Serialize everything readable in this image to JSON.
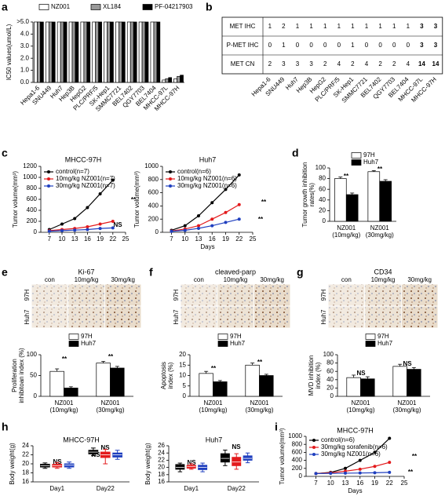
{
  "chart_data": [
    {
      "panel": "a",
      "type": "bar",
      "ylabel": "IC50 values(umol/L)",
      "categories": [
        "Hepa1-6",
        "SNU449",
        "Huh7",
        "Hep3B",
        "HepG2",
        "PLC/PRF/5",
        "SK-Hep1",
        "SMMC7721",
        "BEL7402",
        "QGY7703",
        "BEL7404",
        "MHCC-97L",
        "MHCC-97H"
      ],
      "series": [
        {
          "name": "NZ001",
          "color": "#ffffff",
          "values": [
            5,
            5,
            5,
            5,
            5,
            5,
            5,
            5,
            5,
            5,
            5,
            0.2,
            0.3
          ]
        },
        {
          "name": "XL184",
          "color": "#999999",
          "values": [
            5,
            5,
            5,
            5,
            5,
            5,
            5,
            5,
            5,
            5,
            5,
            0.3,
            0.5
          ]
        },
        {
          "name": "PF-04217903",
          "color": "#000000",
          "values": [
            5,
            5,
            5,
            5,
            5,
            5,
            5,
            5,
            5,
            5,
            5,
            0.4,
            0.6
          ]
        }
      ],
      "ylim": [
        0,
        5
      ],
      "yticks": [
        {
          "value": 0,
          "label": "0.0"
        },
        {
          "value": 1,
          "label": "1.0"
        },
        {
          "value": 2,
          "label": "2.0"
        },
        {
          "value": 3,
          "label": "3.0"
        },
        {
          "value": 4,
          "label": "4.0"
        },
        {
          "value": 5,
          "label": ">5.0"
        }
      ]
    },
    {
      "panel": "b",
      "type": "table",
      "columns": [
        "Hepa1-6",
        "SNU449",
        "Huh7",
        "Hep3B",
        "HepG2",
        "PLC/PRF/5",
        "SK-Hep1",
        "SMMC7721",
        "BEL7402",
        "QGY7703",
        "BEL7404",
        "MHCC-97L",
        "MHCC-97H"
      ],
      "rows": [
        {
          "label": "MET IHC",
          "values": [
            1,
            2,
            1,
            1,
            1,
            1,
            1,
            1,
            1,
            1,
            1,
            3,
            3
          ]
        },
        {
          "label": "P-MET IHC",
          "values": [
            0,
            1,
            0,
            0,
            0,
            0,
            1,
            0,
            0,
            0,
            0,
            3,
            3
          ]
        },
        {
          "label": "MET CN",
          "values": [
            2,
            3,
            3,
            3,
            2,
            4,
            2,
            4,
            2,
            2,
            4,
            14,
            14
          ]
        }
      ]
    },
    {
      "panel": "c",
      "type": "line",
      "title": "MHCC-97H",
      "ylabel": "Tumor volume(mm³)",
      "x": [
        7,
        10,
        13,
        16,
        19,
        22
      ],
      "xlim": [
        5,
        25
      ],
      "xticks": [
        7,
        10,
        13,
        16,
        19,
        22,
        25
      ],
      "ylim": [
        0,
        1200
      ],
      "yticks": [
        0,
        200,
        400,
        600,
        800,
        1000,
        1200
      ],
      "series": [
        {
          "name": "control(n=7)",
          "color": "#000000",
          "values": [
            50,
            150,
            250,
            450,
            700,
            950
          ]
        },
        {
          "name": "10mg/kg NZ001(n=7)",
          "color": "#e31a1c",
          "values": [
            30,
            50,
            70,
            100,
            150,
            200
          ]
        },
        {
          "name": "30mg/kg NZ001(n=7)",
          "color": "#1f3fbf",
          "values": [
            20,
            30,
            40,
            50,
            70,
            80
          ]
        }
      ],
      "annotations": [
        "**",
        "NS"
      ]
    },
    {
      "type": "line",
      "title": "Huh7",
      "ylabel": "Tumor volume(mm³)",
      "xlabel": "Days",
      "x": [
        7,
        10,
        13,
        16,
        19,
        22
      ],
      "xlim": [
        5,
        25
      ],
      "xticks": [
        7,
        10,
        13,
        16,
        19,
        22,
        25
      ],
      "ylim": [
        0,
        1000
      ],
      "yticks": [
        0,
        200,
        400,
        600,
        800,
        1000
      ],
      "series": [
        {
          "name": "control(n=6)",
          "color": "#000000",
          "values": [
            30,
            100,
            250,
            450,
            650,
            870
          ]
        },
        {
          "name": "10mg/kg NZ001(n=6)",
          "color": "#e31a1c",
          "values": [
            20,
            50,
            100,
            200,
            300,
            420
          ]
        },
        {
          "name": "30mg/kg NZ001(n=6)",
          "color": "#1f3fbf",
          "values": [
            15,
            30,
            60,
            100,
            150,
            200
          ]
        }
      ],
      "annotations": [
        "**",
        "**"
      ]
    },
    {
      "panel": "d",
      "type": "bar",
      "ylabel": [
        "Tumor growth inhibition",
        "rates(%)"
      ],
      "categories": [
        [
          "NZ001",
          "(10mg/kg)"
        ],
        [
          "NZ001",
          "(30mg/kg)"
        ]
      ],
      "series": [
        {
          "name": "97H",
          "color": "#ffffff",
          "values": [
            80,
            93
          ],
          "errors": [
            3,
            2
          ]
        },
        {
          "name": "Huh7",
          "color": "#000000",
          "values": [
            50,
            75
          ],
          "errors": [
            3,
            3
          ]
        }
      ],
      "ylim": [
        0,
        100
      ],
      "yticks": [
        0,
        20,
        40,
        60,
        80,
        100
      ],
      "annotations": [
        "**",
        "**"
      ]
    },
    {
      "panel": "e",
      "type": "bar",
      "title": "Ki-67",
      "image_columns": [
        "con",
        "10mg/kg",
        "30mg/kg"
      ],
      "image_rows": [
        "97H",
        "Huh7"
      ],
      "ylabel": [
        "Proliferation",
        "inhibitoan index (%)"
      ],
      "categories": [
        [
          "NZ001",
          "(10mg/kg)"
        ],
        [
          "NZ001",
          "(30mg/kg)"
        ]
      ],
      "series": [
        {
          "name": "97H",
          "color": "#ffffff",
          "values": [
            60,
            80
          ],
          "errors": [
            6,
            4
          ]
        },
        {
          "name": "Huh7",
          "color": "#000000",
          "values": [
            20,
            68
          ],
          "errors": [
            3,
            4
          ]
        }
      ],
      "ylim": [
        0,
        100
      ],
      "yticks": [
        0,
        50,
        100
      ],
      "annotations": [
        "**",
        "**"
      ]
    },
    {
      "panel": "f",
      "type": "bar",
      "title": "cleaved-parp",
      "image_columns": [
        "con",
        "10mg/kg",
        "30mg/kg"
      ],
      "image_rows": [
        "97H",
        "Huh7"
      ],
      "ylabel": [
        "Apoptosis",
        "index (%)"
      ],
      "categories": [
        [
          "NZ001",
          "(10mg/kg)"
        ],
        [
          "NZ001",
          "(30mg/kg)"
        ]
      ],
      "series": [
        {
          "name": "97H",
          "color": "#ffffff",
          "values": [
            11,
            15
          ],
          "errors": [
            1,
            1
          ]
        },
        {
          "name": "Huh7",
          "color": "#000000",
          "values": [
            7,
            10
          ],
          "errors": [
            0.6,
            0.6
          ]
        }
      ],
      "ylim": [
        0,
        20
      ],
      "yticks": [
        0,
        5,
        10,
        15,
        20
      ],
      "annotations": [
        "**",
        "**"
      ]
    },
    {
      "panel": "g",
      "type": "bar",
      "title": "CD34",
      "image_columns": [
        "con",
        "10mg/kg",
        "30mg/kg"
      ],
      "image_rows": [
        "97H",
        "Huh7"
      ],
      "ylabel": [
        "MVD inhibition",
        "index (%)"
      ],
      "categories": [
        [
          "NZ001",
          "(10mg/kg)"
        ],
        [
          "NZ001",
          "(30mg/kg)"
        ]
      ],
      "series": [
        {
          "name": "97H",
          "color": "#ffffff",
          "values": [
            45,
            72
          ],
          "errors": [
            6,
            5
          ]
        },
        {
          "name": "Huh7",
          "color": "#000000",
          "values": [
            42,
            65
          ],
          "errors": [
            5,
            4
          ]
        }
      ],
      "ylim": [
        0,
        100
      ],
      "yticks": [
        0,
        20,
        40,
        60,
        80,
        100
      ],
      "annotations": [
        "NS",
        "NS"
      ]
    },
    {
      "panel": "h",
      "type": "box",
      "title": "MHCC-97H",
      "ylabel": "Body weight(g)",
      "groups": [
        "Day1",
        "Day22"
      ],
      "ylim": [
        16,
        24
      ],
      "yticks": [
        16,
        18,
        20,
        22,
        24
      ],
      "series": [
        {
          "color": "#000000",
          "boxes": [
            {
              "min": 19,
              "q1": 19.3,
              "median": 19.6,
              "q3": 19.9,
              "max": 20.2
            },
            {
              "min": 21.8,
              "q1": 22.2,
              "median": 22.6,
              "q3": 23,
              "max": 23.5
            }
          ]
        },
        {
          "color": "#e31a1c",
          "boxes": [
            {
              "min": 19,
              "q1": 19.3,
              "median": 19.6,
              "q3": 19.9,
              "max": 20.3
            },
            {
              "min": 20,
              "q1": 21.4,
              "median": 22,
              "q3": 22.6,
              "max": 23.2
            }
          ]
        },
        {
          "color": "#1f3fbf",
          "boxes": [
            {
              "min": 19,
              "q1": 19.3,
              "median": 19.7,
              "q3": 20,
              "max": 20.4
            },
            {
              "min": 21,
              "q1": 21.5,
              "median": 22,
              "q3": 22.4,
              "max": 23
            }
          ]
        }
      ],
      "annotations": [
        "NS",
        "NS",
        "NS"
      ]
    },
    {
      "type": "box",
      "title": "Huh7",
      "ylabel": "Body weight(g)",
      "groups": [
        "Day1",
        "Day22"
      ],
      "ylim": [
        16,
        26
      ],
      "yticks": [
        16,
        18,
        20,
        22,
        24,
        26
      ],
      "series": [
        {
          "color": "#000000",
          "boxes": [
            {
              "min": 18.8,
              "q1": 19.5,
              "median": 20,
              "q3": 20.8,
              "max": 21.2
            },
            {
              "min": 20.5,
              "q1": 21.5,
              "median": 22.5,
              "q3": 23.8,
              "max": 24.8
            }
          ]
        },
        {
          "color": "#e31a1c",
          "boxes": [
            {
              "min": 19.5,
              "q1": 19.8,
              "median": 20.2,
              "q3": 20.6,
              "max": 21
            },
            {
              "min": 19.5,
              "q1": 20.5,
              "median": 21.5,
              "q3": 22.8,
              "max": 23.8
            }
          ]
        },
        {
          "color": "#1f3fbf",
          "boxes": [
            {
              "min": 18.8,
              "q1": 19.4,
              "median": 20,
              "q3": 20.6,
              "max": 21.2
            },
            {
              "min": 21.3,
              "q1": 22,
              "median": 22.5,
              "q3": 23.2,
              "max": 24
            }
          ]
        }
      ],
      "annotations": [
        "NS",
        "NS"
      ]
    },
    {
      "panel": "i",
      "type": "line",
      "title": "MHCC-97H",
      "ylabel": "Tumor volume(mm³)",
      "xlabel": "Days",
      "x": [
        7,
        10,
        13,
        16,
        19,
        22
      ],
      "xlim": [
        5,
        25
      ],
      "xticks": [
        7,
        10,
        13,
        16,
        19,
        22,
        25
      ],
      "ylim": [
        0,
        1000
      ],
      "yticks": [
        0,
        200,
        400,
        600,
        800,
        1000
      ],
      "series": [
        {
          "name": "control(n=6)",
          "color": "#000000",
          "values": [
            70,
            100,
            200,
            400,
            600,
            950
          ]
        },
        {
          "name": "30mg/kg sorafenib(n=6)",
          "color": "#e31a1c",
          "values": [
            70,
            90,
            130,
            180,
            250,
            350
          ]
        },
        {
          "name": "30mg/kg NZ001(n=6)",
          "color": "#1f3fbf",
          "values": [
            70,
            75,
            80,
            85,
            90,
            100
          ]
        }
      ],
      "annotations": [
        "**",
        "**"
      ]
    }
  ]
}
